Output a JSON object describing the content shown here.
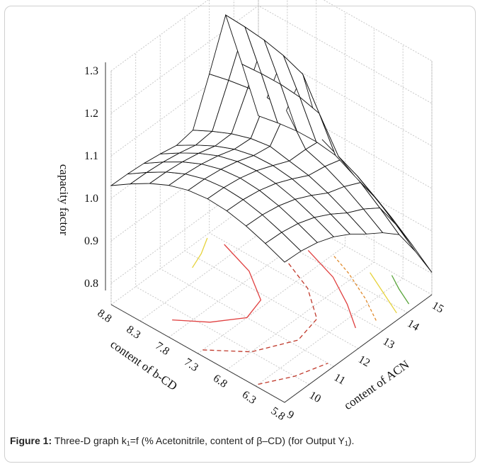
{
  "chart_data": {
    "type": "surface",
    "zlabel": "capacity factor",
    "xlabel": "content of ACN",
    "ylabel": "content of b-CD",
    "x_ticks": [
      9,
      10,
      11,
      12,
      13,
      14,
      15
    ],
    "y_ticks": [
      5.8,
      6.3,
      6.8,
      7.3,
      7.8,
      8.3,
      8.8
    ],
    "z_ticks": [
      0.8,
      0.9,
      1.0,
      1.1,
      1.2,
      1.3
    ],
    "z_tick_labels": [
      "0.8",
      "0.9",
      "1.0",
      "1.1",
      "1.2",
      "1.3"
    ],
    "xlim": [
      9,
      15
    ],
    "ylim": [
      5.8,
      8.8
    ],
    "zlim": [
      0.75,
      1.3
    ],
    "grid": true,
    "contours_on_floor": true,
    "contour_colors": [
      "#c0392b",
      "#e04040",
      "#e08a2c",
      "#e6d23a",
      "#5aa53c"
    ]
  },
  "caption": {
    "label": "Figure 1:",
    "text_before_k": " Three-D graph k",
    "k_sub": "1",
    "text_middle": "=f (% Acetonitrile, content of β–CD) (for Output Y",
    "y_sub": "1",
    "text_end": ")."
  }
}
